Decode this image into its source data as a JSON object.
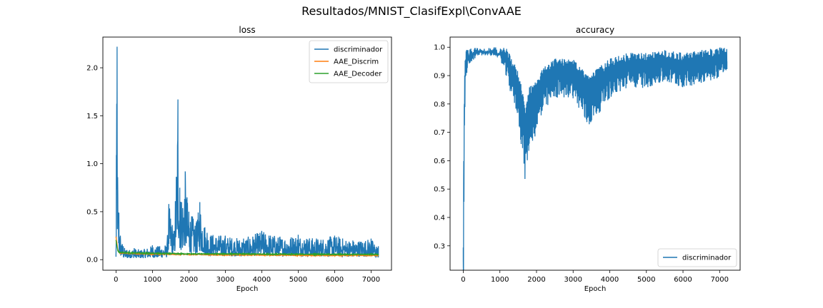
{
  "figure": {
    "suptitle": "Resultados/MNIST_ClasifExpl\\ConvAAE"
  },
  "colors": {
    "discriminador": "#1f77b4",
    "AAE_Discrim": "#ff7f0e",
    "AAE_Decoder": "#2ca02c"
  },
  "chart_data": [
    {
      "type": "line",
      "title": "loss",
      "xlabel": "Epoch",
      "ylabel": "",
      "xlim": [
        -360,
        7560
      ],
      "ylim": [
        -0.11,
        2.32
      ],
      "xticks": [
        0,
        1000,
        2000,
        3000,
        4000,
        5000,
        6000,
        7000
      ],
      "xtick_labels": [
        "0",
        "1000",
        "2000",
        "3000",
        "4000",
        "5000",
        "6000",
        "7000"
      ],
      "yticks": [
        0.0,
        0.5,
        1.0,
        1.5,
        2.0
      ],
      "ytick_labels": [
        "0.0",
        "0.5",
        "1.0",
        "1.5",
        "2.0"
      ],
      "legend": {
        "position": "top-right",
        "entries": [
          "discriminador",
          "AAE_Discrim",
          "AAE_Decoder"
        ]
      },
      "grid": false,
      "series": [
        {
          "name": "discriminador",
          "x": [
            0,
            10,
            30,
            50,
            80,
            120,
            200,
            300,
            500,
            700,
            1000,
            1200,
            1400,
            1450,
            1600,
            1700,
            1750,
            1800,
            1900,
            1950,
            2000,
            2100,
            2200,
            2300,
            2500,
            3000,
            3500,
            4000,
            4500,
            5000,
            5500,
            6000,
            6500,
            7000,
            7200
          ],
          "y": [
            0.05,
            1.09,
            2.22,
            0.68,
            0.49,
            0.25,
            0.14,
            0.1,
            0.12,
            0.1,
            0.15,
            0.14,
            0.16,
            0.58,
            0.3,
            1.67,
            0.75,
            0.6,
            0.92,
            0.65,
            0.5,
            0.45,
            0.38,
            0.6,
            0.28,
            0.25,
            0.22,
            0.3,
            0.24,
            0.26,
            0.22,
            0.25,
            0.2,
            0.22,
            0.14
          ]
        },
        {
          "name": "AAE_Discrim",
          "x": [
            0,
            50,
            100,
            500,
            1000,
            2000,
            3000,
            4000,
            5000,
            6000,
            7000,
            7200
          ],
          "y": [
            0.24,
            0.1,
            0.07,
            0.065,
            0.06,
            0.055,
            0.05,
            0.05,
            0.045,
            0.045,
            0.045,
            0.045
          ]
        },
        {
          "name": "AAE_Decoder",
          "x": [
            0,
            50,
            100,
            500,
            1000,
            2000,
            3000,
            4000,
            5000,
            6000,
            7000,
            7200
          ],
          "y": [
            0.2,
            0.09,
            0.075,
            0.07,
            0.065,
            0.06,
            0.06,
            0.058,
            0.056,
            0.055,
            0.055,
            0.055
          ]
        }
      ]
    },
    {
      "type": "line",
      "title": "accuracy",
      "xlabel": "Epoch",
      "ylabel": "",
      "xlim": [
        -360,
        7560
      ],
      "ylim": [
        0.214,
        1.0358
      ],
      "xticks": [
        0,
        1000,
        2000,
        3000,
        4000,
        5000,
        6000,
        7000
      ],
      "xtick_labels": [
        "0",
        "1000",
        "2000",
        "3000",
        "4000",
        "5000",
        "6000",
        "7000"
      ],
      "yticks": [
        0.3,
        0.4,
        0.5,
        0.6,
        0.7,
        0.8,
        0.9,
        1.0
      ],
      "ytick_labels": [
        "0.3",
        "0.4",
        "0.5",
        "0.6",
        "0.7",
        "0.8",
        "0.9",
        "1.0"
      ],
      "legend": {
        "position": "lower-right",
        "entries": [
          "discriminador"
        ]
      },
      "grid": false,
      "series": [
        {
          "name": "discriminador",
          "x": [
            0,
            10,
            30,
            50,
            100,
            200,
            500,
            1000,
            1500,
            1700,
            1800,
            2000,
            2200,
            2500,
            3000,
            3400,
            4000,
            4500,
            5000,
            5500,
            6000,
            6500,
            7000,
            7200
          ],
          "y": [
            0.25,
            0.52,
            0.8,
            0.9,
            0.95,
            0.97,
            0.99,
            0.98,
            0.86,
            0.73,
            0.8,
            0.83,
            0.87,
            0.9,
            0.9,
            0.84,
            0.9,
            0.92,
            0.92,
            0.93,
            0.92,
            0.93,
            0.94,
            0.95
          ]
        }
      ]
    }
  ]
}
